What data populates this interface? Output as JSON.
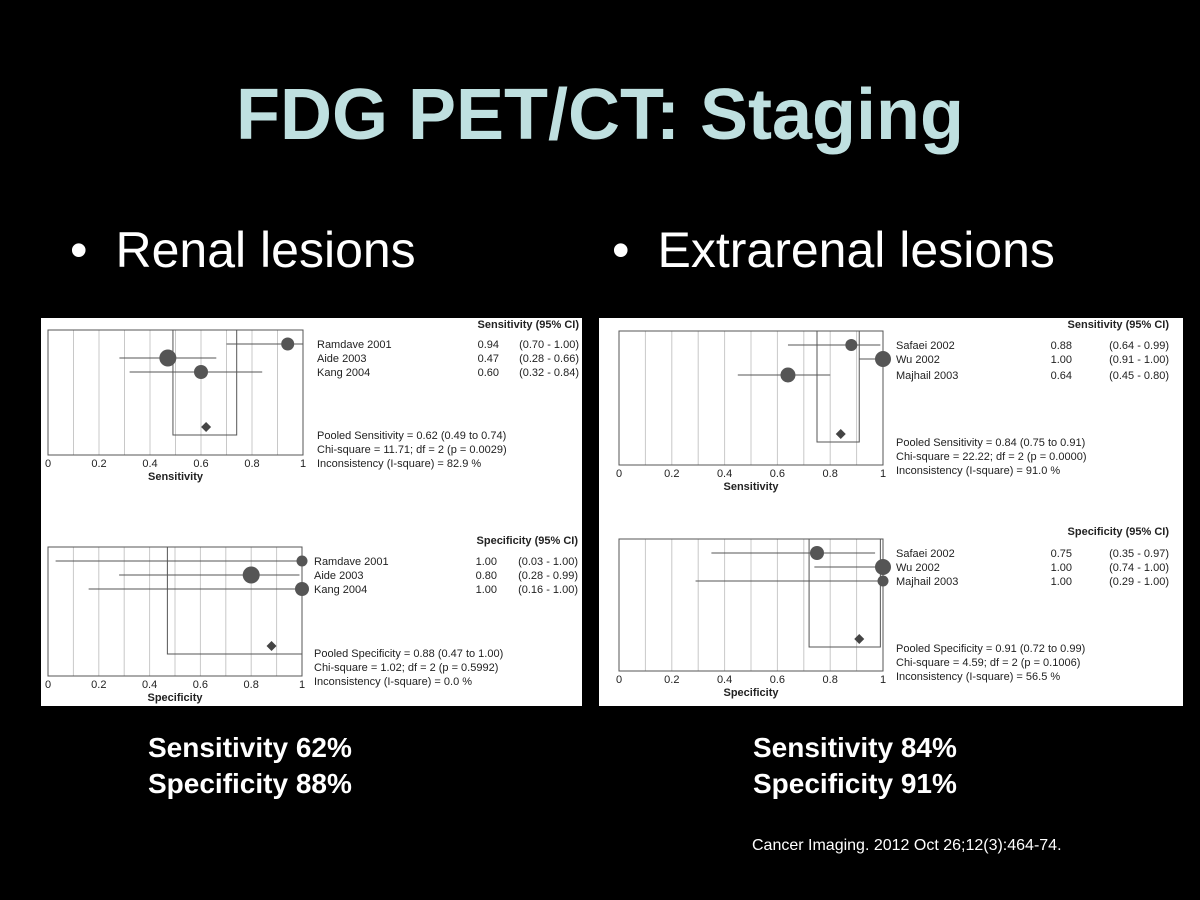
{
  "slide": {
    "title": "FDG PET/CT: Staging",
    "bullets": [
      {
        "symbol": "•",
        "text": "Renal lesions"
      },
      {
        "symbol": "•",
        "text": "Extrarenal lesions"
      }
    ],
    "summaries": [
      {
        "line1": "Sensitivity 62%",
        "line2": "Specificity 88%"
      },
      {
        "line1": "Sensitivity 84%",
        "line2": "Specificity 91%"
      }
    ],
    "citation": "Cancer Imaging. 2012 Oct 26;12(3):464-74."
  },
  "chart_data": [
    {
      "type": "scatter",
      "subtype": "forest-plot",
      "panel": "Renal lesions",
      "header": "Sensitivity (95% CI)",
      "xlabel": "Sensitivity",
      "xlim": [
        0,
        1
      ],
      "xticks": [
        "0",
        "0.2",
        "0.4",
        "0.6",
        "0.8",
        "1"
      ],
      "studies": [
        {
          "name": "Ramdave 2001",
          "value": 0.94,
          "ci": [
            0.7,
            1.0
          ],
          "value_text": "0.94",
          "ci_text": "(0.70 - 1.00)",
          "weight": 13
        },
        {
          "name": "Aide 2003",
          "value": 0.47,
          "ci": [
            0.28,
            0.66
          ],
          "value_text": "0.47",
          "ci_text": "(0.28 - 0.66)",
          "weight": 17
        },
        {
          "name": "Kang 2004",
          "value": 0.6,
          "ci": [
            0.32,
            0.84
          ],
          "value_text": "0.60",
          "ci_text": "(0.32 - 0.84)",
          "weight": 14
        }
      ],
      "pooled": {
        "value": 0.62,
        "ci": [
          0.49,
          0.74
        ]
      },
      "stats": [
        "Pooled Sensitivity = 0.62 (0.49 to 0.74)",
        "Chi-square = 11.71; df = 2 (p = 0.0029)",
        "Inconsistency (I-square) = 82.9 %"
      ]
    },
    {
      "type": "scatter",
      "subtype": "forest-plot",
      "panel": "Renal lesions",
      "header": "Specificity (95% CI)",
      "xlabel": "Specificity",
      "xlim": [
        0,
        1
      ],
      "xticks": [
        "0",
        "0.2",
        "0.4",
        "0.6",
        "0.8",
        "1"
      ],
      "studies": [
        {
          "name": "Ramdave 2001",
          "value": 1.0,
          "ci": [
            0.03,
            1.0
          ],
          "value_text": "1.00",
          "ci_text": "(0.03 - 1.00)",
          "weight": 11
        },
        {
          "name": "Aide 2003",
          "value": 0.8,
          "ci": [
            0.28,
            0.99
          ],
          "value_text": "0.80",
          "ci_text": "(0.28 - 0.99)",
          "weight": 17
        },
        {
          "name": "Kang 2004",
          "value": 1.0,
          "ci": [
            0.16,
            1.0
          ],
          "value_text": "1.00",
          "ci_text": "(0.16 - 1.00)",
          "weight": 14
        }
      ],
      "pooled": {
        "value": 0.88,
        "ci": [
          0.47,
          1.0
        ]
      },
      "stats": [
        "Pooled Specificity = 0.88 (0.47 to 1.00)",
        "Chi-square = 1.02; df = 2 (p = 0.5992)",
        "Inconsistency (I-square) = 0.0 %"
      ]
    },
    {
      "type": "scatter",
      "subtype": "forest-plot",
      "panel": "Extrarenal lesions",
      "header": "Sensitivity (95% CI)",
      "xlabel": "Sensitivity",
      "xlim": [
        0,
        1
      ],
      "xticks": [
        "0",
        "0.2",
        "0.4",
        "0.6",
        "0.8",
        "1"
      ],
      "studies": [
        {
          "name": "Safaei 2002",
          "value": 0.88,
          "ci": [
            0.64,
            0.99
          ],
          "value_text": "0.88",
          "ci_text": "(0.64 - 0.99)",
          "weight": 12
        },
        {
          "name": "Wu 2002",
          "value": 1.0,
          "ci": [
            0.91,
            1.0
          ],
          "value_text": "1.00",
          "ci_text": "(0.91 - 1.00)",
          "weight": 16
        },
        {
          "name": "Majhail 2003",
          "value": 0.64,
          "ci": [
            0.45,
            0.8
          ],
          "value_text": "0.64",
          "ci_text": "(0.45 - 0.80)",
          "weight": 15
        }
      ],
      "pooled": {
        "value": 0.84,
        "ci": [
          0.75,
          0.91
        ]
      },
      "stats": [
        "Pooled Sensitivity = 0.84 (0.75 to 0.91)",
        "Chi-square = 22.22; df = 2 (p = 0.0000)",
        "Inconsistency (I-square) = 91.0 %"
      ]
    },
    {
      "type": "scatter",
      "subtype": "forest-plot",
      "panel": "Extrarenal lesions",
      "header": "Specificity (95% CI)",
      "xlabel": "Specificity",
      "xlim": [
        0,
        1
      ],
      "xticks": [
        "0",
        "0.2",
        "0.4",
        "0.6",
        "0.8",
        "1"
      ],
      "studies": [
        {
          "name": "Safaei 2002",
          "value": 0.75,
          "ci": [
            0.35,
            0.97
          ],
          "value_text": "0.75",
          "ci_text": "(0.35 - 0.97)",
          "weight": 14
        },
        {
          "name": "Wu 2002",
          "value": 1.0,
          "ci": [
            0.74,
            1.0
          ],
          "value_text": "1.00",
          "ci_text": "(0.74 - 1.00)",
          "weight": 16
        },
        {
          "name": "Majhail 2003",
          "value": 1.0,
          "ci": [
            0.29,
            1.0
          ],
          "value_text": "1.00",
          "ci_text": "(0.29 - 1.00)",
          "weight": 11
        }
      ],
      "pooled": {
        "value": 0.91,
        "ci": [
          0.72,
          0.99
        ]
      },
      "stats": [
        "Pooled Specificity = 0.91 (0.72 to 0.99)",
        "Chi-square = 4.59; df = 2 (p = 0.1006)",
        "Inconsistency (I-square) = 56.5 %"
      ]
    }
  ]
}
